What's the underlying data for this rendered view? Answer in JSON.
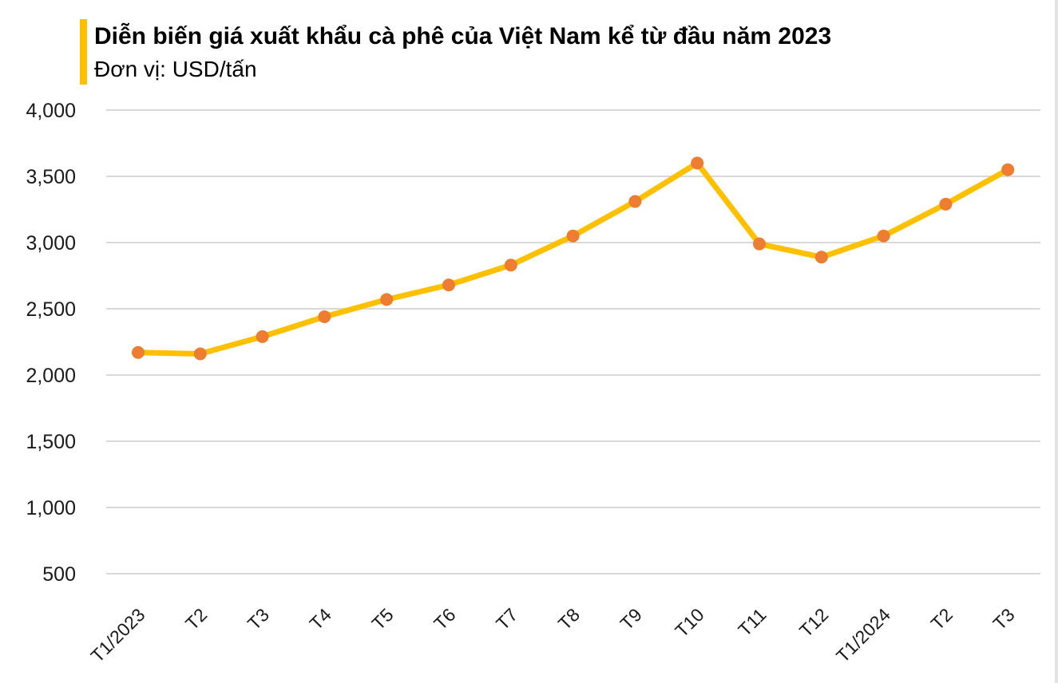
{
  "header": {
    "title": "Diễn biến giá xuất khẩu cà phê của Việt Nam kể từ đầu năm 2023",
    "subtitle": "Đơn vị: USD/tấn",
    "accent_color": "#FFC000"
  },
  "chart_data": {
    "type": "line",
    "title": "Diễn biến giá xuất khẩu cà phê của Việt Nam kể từ đầu năm 2023",
    "ylabel": "USD/tấn",
    "xlabel": "",
    "categories": [
      "T1/2023",
      "T2",
      "T3",
      "T4",
      "T5",
      "T6",
      "T7",
      "T8",
      "T9",
      "T10",
      "T11",
      "T12",
      "T1/2024",
      "T2",
      "T3"
    ],
    "series": [
      {
        "name": "",
        "values": [
          2170,
          2160,
          2290,
          2440,
          2570,
          2680,
          2830,
          3050,
          3310,
          3600,
          2990,
          2890,
          3050,
          3290,
          3550
        ]
      }
    ],
    "ylim": [
      500,
      4000
    ],
    "yticks": [
      {
        "value": 4000,
        "label": "4,000"
      },
      {
        "value": 3500,
        "label": "3,500"
      },
      {
        "value": 3000,
        "label": "3,000"
      },
      {
        "value": 2500,
        "label": "2,500"
      },
      {
        "value": 2000,
        "label": "2,000"
      },
      {
        "value": 1500,
        "label": "1,500"
      },
      {
        "value": 1000,
        "label": "1,000"
      },
      {
        "value": 500,
        "label": "500"
      }
    ],
    "grid": true,
    "legend_position": "none",
    "line_color": "#FFC000",
    "marker_color": "#ED7D31",
    "gridline_color": "#D9D9D9",
    "label_color": "#1a1a1a"
  }
}
